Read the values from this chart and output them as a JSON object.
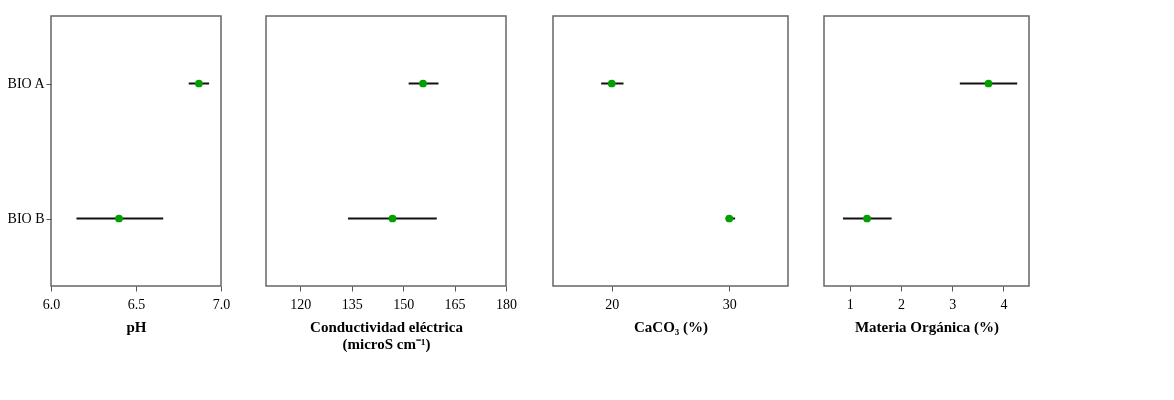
{
  "chart_data": [
    {
      "type": "scatter",
      "orientation": "horizontal",
      "categories": [
        "BIO A",
        "BIO B"
      ],
      "values": [
        6.87,
        6.4
      ],
      "errors": [
        [
          6.81,
          6.93
        ],
        [
          6.15,
          6.66
        ]
      ],
      "color": "#00a000",
      "marker": "circle",
      "xlim": [
        6.0,
        7.0
      ],
      "xticks": [
        {
          "value": 6,
          "label": "6.0"
        },
        {
          "value": 6.5,
          "label": "6.5"
        },
        {
          "value": 7,
          "label": "7.0"
        }
      ],
      "xlabel": "pH",
      "grid": false
    },
    {
      "type": "scatter",
      "orientation": "horizontal",
      "categories": [
        null,
        null
      ],
      "values": [
        155.8,
        146.9
      ],
      "errors": [
        [
          151.6,
          160.3
        ],
        [
          133.9,
          159.8
        ]
      ],
      "color": "#00a000",
      "marker": "circle",
      "xlim": [
        110,
        180
      ],
      "xticks": [
        120,
        135,
        150,
        165,
        180
      ],
      "xlabel": "Conductividad eléctrica\n(microS cm⁻¹)",
      "grid": false,
      "tick_labels": "x"
    },
    {
      "type": "scatter",
      "orientation": "horizontal",
      "categories": [
        null,
        null
      ],
      "values": [
        20.0,
        30.0
      ],
      "errors": [
        [
          19.1,
          21.0
        ],
        [
          29.7,
          30.5
        ]
      ],
      "color": "#00a000",
      "marker": "circle",
      "xlim": [
        15,
        35
      ],
      "xticks": [
        20,
        30
      ],
      "xlabel": "CaCO₃ (%)",
      "grid": false,
      "tick_labels": "x"
    },
    {
      "type": "scatter",
      "orientation": "horizontal",
      "categories": [
        null,
        null
      ],
      "values": [
        3.71,
        1.34
      ],
      "errors": [
        [
          3.15,
          4.27
        ],
        [
          0.87,
          1.82
        ]
      ],
      "color": "#00a000",
      "marker": "circle",
      "xlim": [
        0.5,
        4.5
      ],
      "xticks": [
        1,
        2,
        3,
        4
      ],
      "xlabel": "Materia Orgánica (%)",
      "grid": false,
      "tick_labels": "x"
    }
  ]
}
